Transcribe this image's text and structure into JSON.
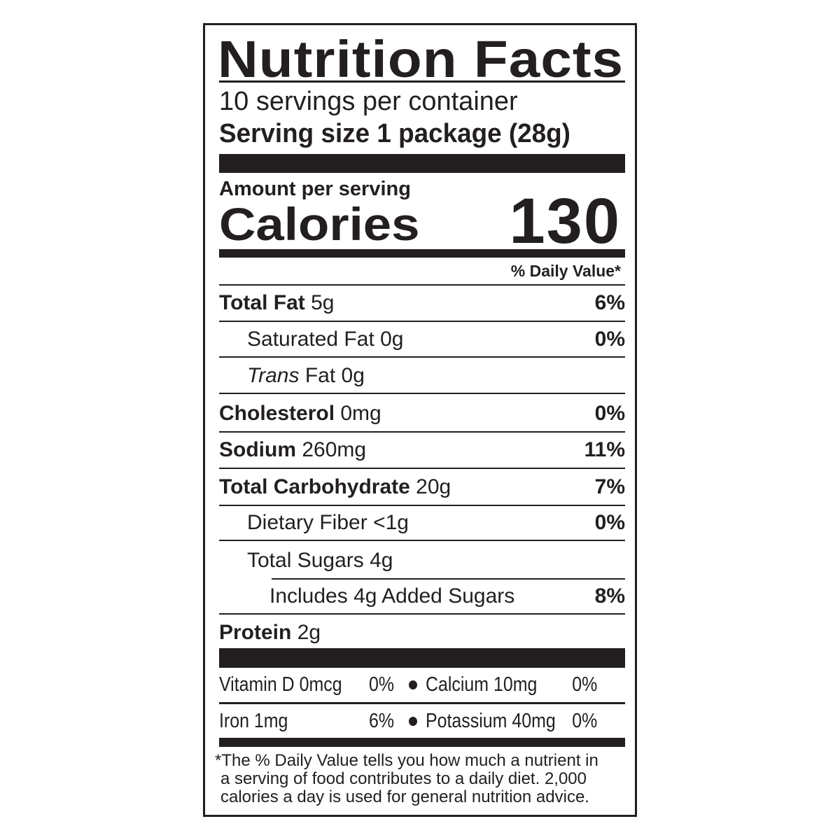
{
  "title": "Nutrition Facts",
  "servings_per_container": "10 servings per container",
  "serving_size": "Serving size 1 package (28g)",
  "amount_per_serving": "Amount per serving",
  "calories_label": "Calories",
  "calories_value": "130",
  "daily_value_header": "% Daily Value*",
  "nutrients": [
    {
      "name": "Total Fat",
      "amount": "5g",
      "dv": "6%"
    },
    {
      "name": "Saturated Fat",
      "amount": "0g",
      "dv": "0%"
    },
    {
      "name": "Trans",
      "name_suffix": "Fat",
      "amount": "0g",
      "dv": ""
    },
    {
      "name": "Cholesterol",
      "amount": "0mg",
      "dv": "0%"
    },
    {
      "name": "Sodium",
      "amount": "260mg",
      "dv": "11%"
    },
    {
      "name": "Total Carbohydrate",
      "amount": "20g",
      "dv": "7%"
    },
    {
      "name": "Dietary Fiber",
      "amount": "<1g",
      "dv": "0%"
    },
    {
      "name": "Total Sugars",
      "amount": "4g",
      "dv": ""
    },
    {
      "name": "Includes 4g Added Sugars",
      "amount": "",
      "dv": "8%"
    },
    {
      "name": "Protein",
      "amount": "2g",
      "dv": ""
    }
  ],
  "vitamins": [
    [
      {
        "label": "Vitamin D 0mcg",
        "dv": "0%"
      },
      {
        "label": "Calcium 10mg",
        "dv": "0%"
      }
    ],
    [
      {
        "label": "Iron 1mg",
        "dv": "6%"
      },
      {
        "label": "Potassium 40mg",
        "dv": "0%"
      }
    ]
  ],
  "footnote": [
    "*The % Daily Value tells you how much a nutrient in",
    "a serving of food contributes to a daily diet. 2,000",
    "calories a day is used for general nutrition advice."
  ]
}
